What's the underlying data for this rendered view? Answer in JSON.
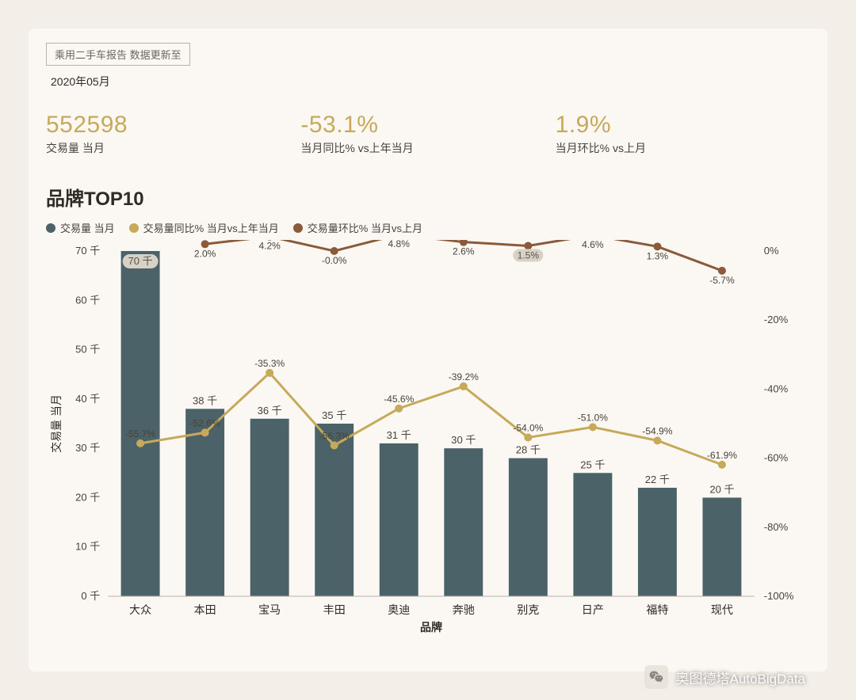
{
  "header": {
    "report_label": "乘用二手车报告 数据更新至",
    "date": "2020年05月"
  },
  "metrics": [
    {
      "value": "552598",
      "label": "交易量 当月"
    },
    {
      "value": "-53.1%",
      "label": "当月同比% vs上年当月"
    },
    {
      "value": "1.9%",
      "label": "当月环比% vs上月"
    }
  ],
  "metric_value_color": "#c7a95a",
  "section_title": "品牌TOP10",
  "legend": {
    "bar": {
      "label": "交易量 当月",
      "color": "#4a6268"
    },
    "yoy": {
      "label": "交易量同比% 当月vs上年当月",
      "color": "#c7a95a"
    },
    "mom": {
      "label": "交易量环比% 当月vs上月",
      "color": "#8a5a3a"
    }
  },
  "chart": {
    "type": "bar+line-dual-axis",
    "background_color": "#fbf8f4",
    "plot_bg": "#fbf8f4",
    "categories": [
      "大众",
      "本田",
      "宝马",
      "丰田",
      "奥迪",
      "奔驰",
      "别克",
      "日产",
      "福特",
      "现代"
    ],
    "bars": {
      "values_k": [
        70,
        38,
        36,
        35,
        31,
        30,
        28,
        25,
        22,
        20
      ],
      "value_labels": [
        "70 千",
        "38 千",
        "36 千",
        "35 千",
        "31 千",
        "30 千",
        "28 千",
        "25 千",
        "22 千",
        "20 千"
      ],
      "color": "#4a6268",
      "bar_width": 0.6,
      "label_fontsize": 13,
      "label_color": "#4a4238",
      "first_label_bg": "#d7d1c6"
    },
    "yoy_line": {
      "values_pct": [
        -55.7,
        -52.6,
        -35.3,
        -56.3,
        -45.6,
        -39.2,
        -54.0,
        -51.0,
        -54.9,
        -61.9
      ],
      "labels": [
        "-55.7%",
        "-52.6%",
        "-35.3%",
        "-56.3%",
        "-45.6%",
        "-39.2%",
        "-54.0%",
        "-51.0%",
        "-54.9%",
        "-61.9%"
      ],
      "color": "#c7a95a",
      "line_width": 3,
      "marker": "circle",
      "marker_size": 5,
      "label_fontsize": 12,
      "label_color": "#4a4238"
    },
    "mom_line": {
      "values_pct": [
        null,
        2.0,
        4.2,
        -0.0,
        4.8,
        2.6,
        1.5,
        4.6,
        1.3,
        -5.7
      ],
      "labels": [
        "",
        "2.0%",
        "4.2%",
        "-0.0%",
        "4.8%",
        "2.6%",
        "1.5%",
        "4.6%",
        "1.3%",
        "-5.7%"
      ],
      "color": "#8a5a3a",
      "line_width": 3,
      "marker": "circle",
      "marker_size": 5,
      "label_fontsize": 12,
      "label_color": "#4a4238"
    },
    "y_left": {
      "title": "交易量 当月",
      "title_fontsize": 14,
      "min": 0,
      "max": 70,
      "step": 10,
      "tick_labels": [
        "0 千",
        "10 千",
        "20 千",
        "30 千",
        "40 千",
        "50 千",
        "60 千",
        "70 千"
      ],
      "tick_fontsize": 13,
      "tick_color": "#4a4238"
    },
    "y_right": {
      "min": -100,
      "max": 0,
      "step": 20,
      "tick_labels": [
        "-100%",
        "-80%",
        "-60%",
        "-40%",
        "-20%",
        "0%"
      ],
      "tick_fontsize": 13,
      "tick_color": "#4a4238"
    },
    "x_axis": {
      "title": "品牌",
      "title_fontsize": 14,
      "tick_fontsize": 14,
      "tick_color": "#2f2a24"
    },
    "grid": false
  },
  "watermark": {
    "text": "奥图德塔AutoBigData",
    "icon": "wechat"
  }
}
